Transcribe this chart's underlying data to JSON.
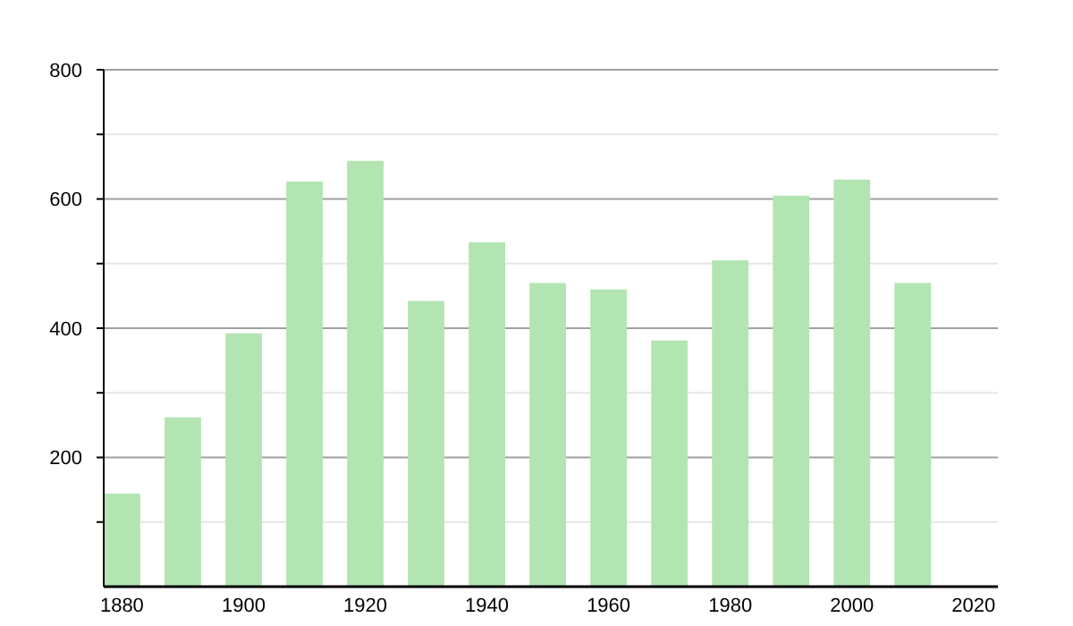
{
  "chart_data": {
    "type": "bar",
    "x": [
      1880,
      1890,
      1900,
      1910,
      1920,
      1930,
      1940,
      1950,
      1960,
      1970,
      1980,
      1990,
      2000,
      2010
    ],
    "values": [
      144,
      262,
      392,
      627,
      659,
      442,
      533,
      470,
      460,
      381,
      505,
      605,
      630,
      470
    ],
    "color": "#b2e5b2",
    "xlim": [
      1877,
      2024
    ],
    "xticks": [
      1880,
      1900,
      1920,
      1940,
      1960,
      1980,
      2000,
      2020
    ],
    "ylim": [
      0,
      800
    ],
    "yticks": [
      {
        "value": 100,
        "label": null
      },
      200,
      {
        "value": 300,
        "label": null
      },
      400,
      {
        "value": 500,
        "label": null
      },
      600,
      {
        "value": 700,
        "label": null
      },
      800
    ],
    "grid": "y"
  }
}
